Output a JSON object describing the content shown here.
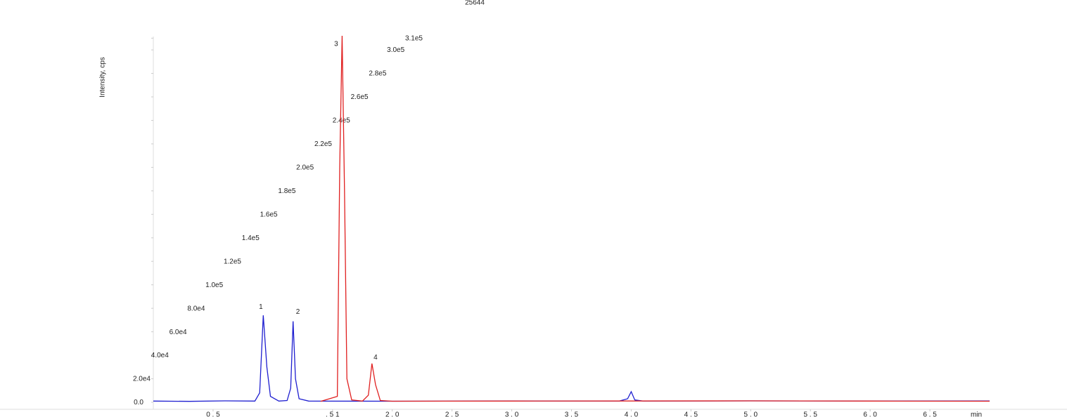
{
  "chart_data": {
    "type": "line",
    "top_label": "25644",
    "y_label": "Intensity, cps",
    "x_label": "min",
    "xlim": [
      0,
      7.0
    ],
    "ylim": [
      0,
      315000
    ],
    "xticks": [
      {
        "value": 0.5,
        "label": "0 . 5"
      },
      {
        "value": 1.5,
        "label": ". 5 1"
      },
      {
        "value": 2.0,
        "label": "2 . 0"
      },
      {
        "value": 2.5,
        "label": "2 . 5"
      },
      {
        "value": 3.0,
        "label": "3 . 0"
      },
      {
        "value": 3.5,
        "label": "3 . 5"
      },
      {
        "value": 4.0,
        "label": "4 . 0"
      },
      {
        "value": 4.5,
        "label": "4 . 5"
      },
      {
        "value": 5.0,
        "label": "5 . 0"
      },
      {
        "value": 5.5,
        "label": "5 . 5"
      },
      {
        "value": 6.0,
        "label": "6 . 0"
      },
      {
        "value": 6.5,
        "label": "6 . 5"
      }
    ],
    "yticks": [
      {
        "value": 0,
        "label": "0.0"
      },
      {
        "value": 20000,
        "label": "2.0e4"
      },
      {
        "value": 40000,
        "label": "4.0e4"
      },
      {
        "value": 60000,
        "label": "6.0e4"
      },
      {
        "value": 80000,
        "label": "8.0e4"
      },
      {
        "value": 100000,
        "label": "1.0e5"
      },
      {
        "value": 120000,
        "label": "1.2e5"
      },
      {
        "value": 140000,
        "label": "1.4e5"
      },
      {
        "value": 160000,
        "label": "1.6e5"
      },
      {
        "value": 180000,
        "label": "1.8e5"
      },
      {
        "value": 200000,
        "label": "2.0e5"
      },
      {
        "value": 220000,
        "label": "2.2e5"
      },
      {
        "value": 240000,
        "label": "2.4e5"
      },
      {
        "value": 260000,
        "label": "2.6e5"
      },
      {
        "value": 280000,
        "label": "2.8e5"
      },
      {
        "value": 300000,
        "label": "3.0e5"
      },
      {
        "value": 310000,
        "label": "3.1e5"
      }
    ],
    "series": [
      {
        "color": "#1f1fd0",
        "x": [
          0,
          0.3,
          0.6,
          0.85,
          0.89,
          0.92,
          0.95,
          0.98,
          1.05,
          1.12,
          1.15,
          1.17,
          1.19,
          1.22,
          1.3,
          2.0,
          3.0,
          3.9,
          3.97,
          4.0,
          4.03,
          4.1,
          5.0,
          6.0,
          7.0
        ],
        "values": [
          1000,
          800,
          1200,
          1000,
          8000,
          74000,
          30000,
          5000,
          1000,
          1500,
          12000,
          69000,
          20000,
          3000,
          1000,
          900,
          1100,
          1000,
          3000,
          9000,
          2000,
          1000,
          1200,
          1000,
          1100
        ]
      },
      {
        "color": "#e02020",
        "x": [
          1.4,
          1.54,
          1.56,
          1.58,
          1.6,
          1.62,
          1.66,
          1.75,
          1.8,
          1.83,
          1.86,
          1.9,
          2.0,
          3.0,
          4.0,
          5.0,
          6.0,
          7.0
        ],
        "values": [
          800,
          5000,
          200000,
          312000,
          180000,
          20000,
          2000,
          1000,
          6000,
          33000,
          15000,
          1500,
          900,
          1000,
          1100,
          1200,
          1000,
          900
        ]
      }
    ],
    "annotations": [
      {
        "text": "1",
        "x": 0.9,
        "y": 81000
      },
      {
        "text": "2",
        "x": 1.21,
        "y": 77000
      },
      {
        "text": "3",
        "x": 1.53,
        "y": 305000
      },
      {
        "text": "4",
        "x": 1.86,
        "y": 38000
      }
    ]
  }
}
